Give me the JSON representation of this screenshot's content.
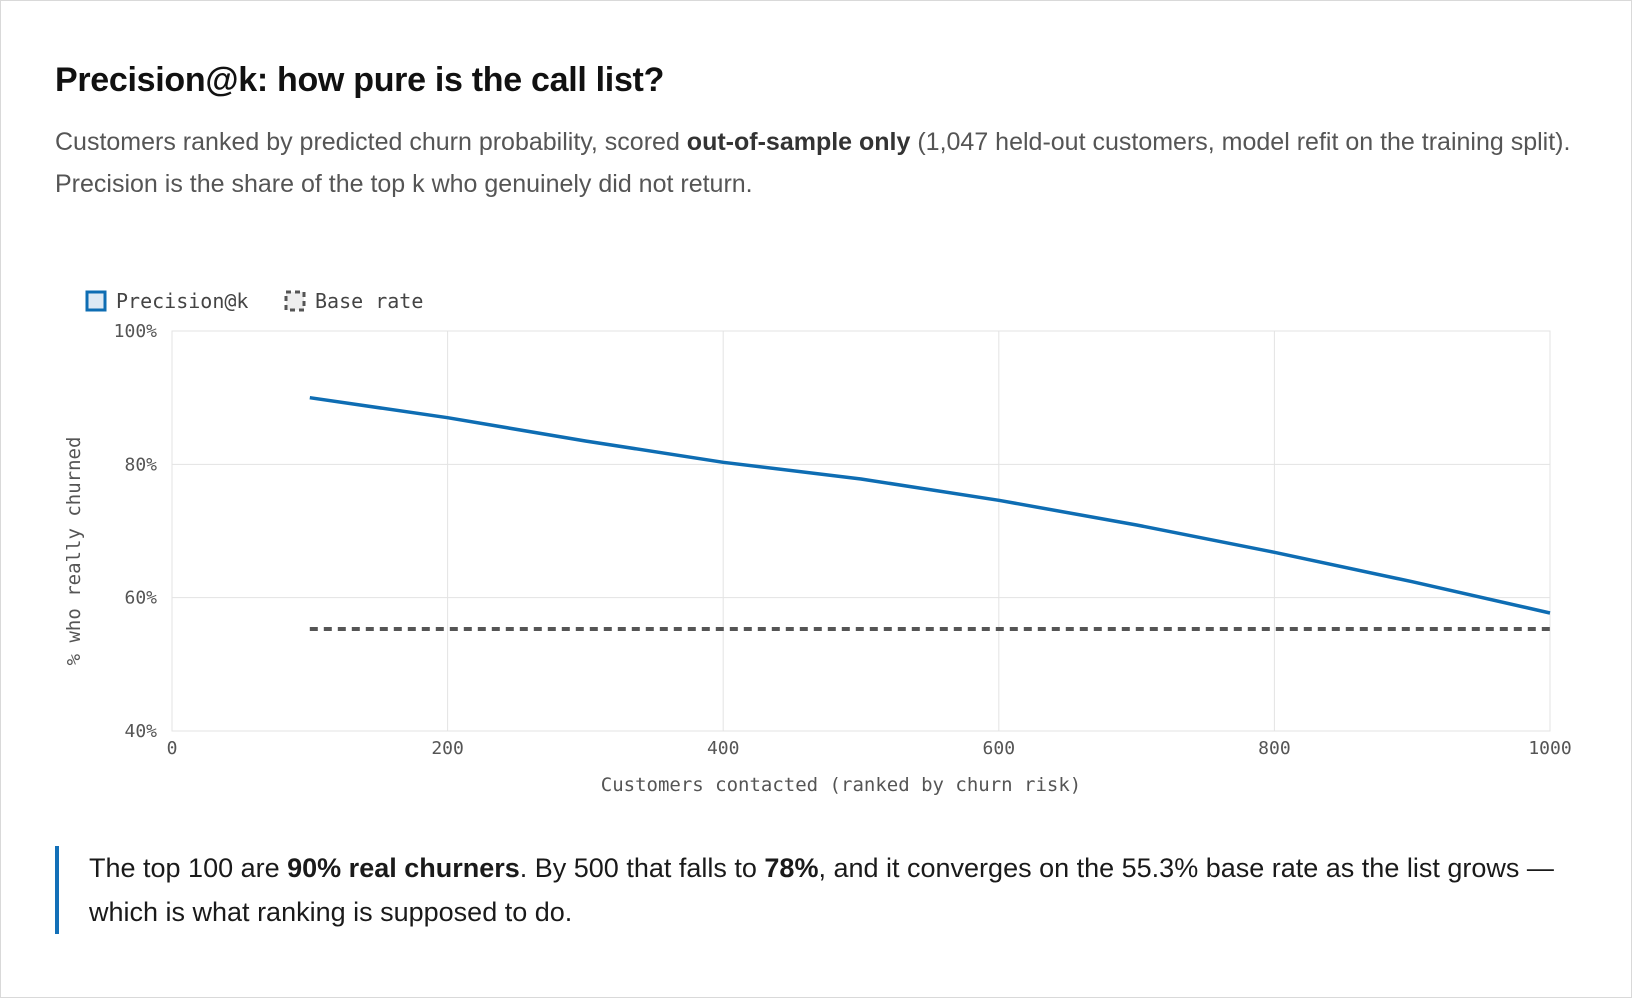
{
  "header": {
    "title": "Precision@k: how pure is the call list?",
    "subtitle": {
      "part1": "Customers ranked by predicted churn probability, scored ",
      "bold": "out-of-sample only",
      "part2": " (1,047 held-out customers, model refit on the training split). Precision is the share of the top k who genuinely did not return."
    }
  },
  "chart_data": {
    "type": "line",
    "title": "",
    "xlabel": "Customers contacted (ranked by churn risk)",
    "ylabel": "% who really churned",
    "xlim": [
      0,
      1000
    ],
    "ylim": [
      40,
      100
    ],
    "x_ticks": [
      "0",
      "200",
      "400",
      "600",
      "800",
      "1000"
    ],
    "x_tick_values": [
      0,
      200,
      400,
      600,
      800,
      1000
    ],
    "y_ticks": [
      "40%",
      "60%",
      "80%",
      "100%"
    ],
    "y_tick_values": [
      40,
      60,
      80,
      100
    ],
    "grid": true,
    "legend_placement": "top-left",
    "series": [
      {
        "name": "Precision@k",
        "color": "#0e6db3",
        "style": "solid",
        "x": [
          100,
          200,
          300,
          400,
          500,
          600,
          700,
          800,
          900,
          1000
        ],
        "values": [
          90,
          87,
          83.5,
          80.3,
          77.8,
          74.6,
          70.9,
          66.8,
          62.4,
          57.7
        ]
      },
      {
        "name": "Base rate",
        "color": "#555555",
        "style": "dashed",
        "x": [
          100,
          1000
        ],
        "values": [
          55.3,
          55.3
        ]
      }
    ]
  },
  "insight": {
    "t1": "The top 100 are ",
    "b1": "90% real churners",
    "t2": ". By 500 that falls to ",
    "b2": "78%",
    "t3": ", and it converges on the 55.3% base rate as the list grows — which is what ranking is supposed to do."
  }
}
